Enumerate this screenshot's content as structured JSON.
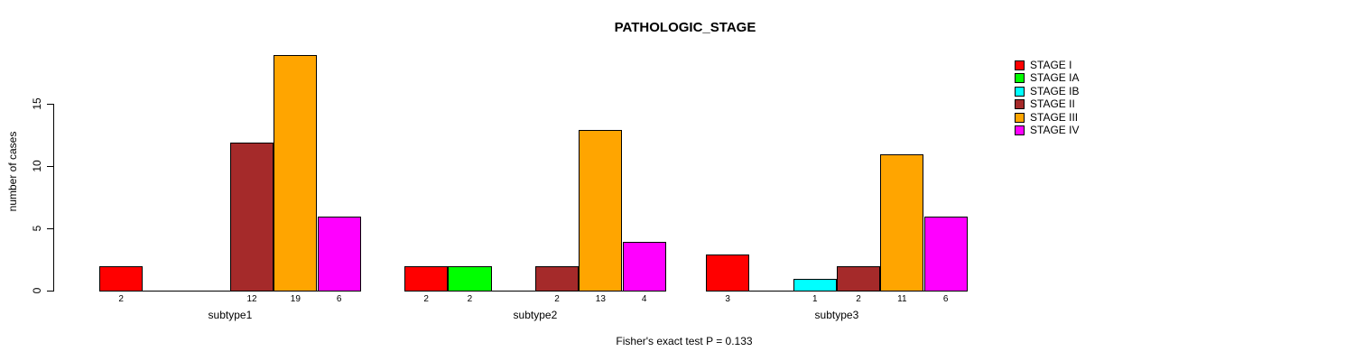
{
  "chart_data": {
    "type": "bar",
    "title": "PATHOLOGIC_STAGE",
    "ylabel": "number of cases",
    "xlabel": "",
    "footnote": "Fisher's exact test P = 0.133",
    "categories": [
      "subtype1",
      "subtype2",
      "subtype3"
    ],
    "series": [
      {
        "name": "STAGE I",
        "color": "#ff0000",
        "values": [
          2,
          2,
          3
        ]
      },
      {
        "name": "STAGE IA",
        "color": "#00ff00",
        "values": [
          0,
          2,
          0
        ]
      },
      {
        "name": "STAGE IB",
        "color": "#00ffff",
        "values": [
          0,
          0,
          1
        ]
      },
      {
        "name": "STAGE II",
        "color": "#a52a2a",
        "values": [
          12,
          2,
          2
        ]
      },
      {
        "name": "STAGE III",
        "color": "#ffa500",
        "values": [
          19,
          13,
          11
        ]
      },
      {
        "name": "STAGE IV",
        "color": "#ff00ff",
        "values": [
          6,
          4,
          6
        ]
      }
    ],
    "yticks": [
      0,
      5,
      10,
      15
    ],
    "ylim": [
      0,
      19
    ],
    "grid": false,
    "legend_position": "top-right",
    "bar_count_labels_shown": true,
    "text_color": "#000000",
    "background_color": "#ffffff"
  }
}
